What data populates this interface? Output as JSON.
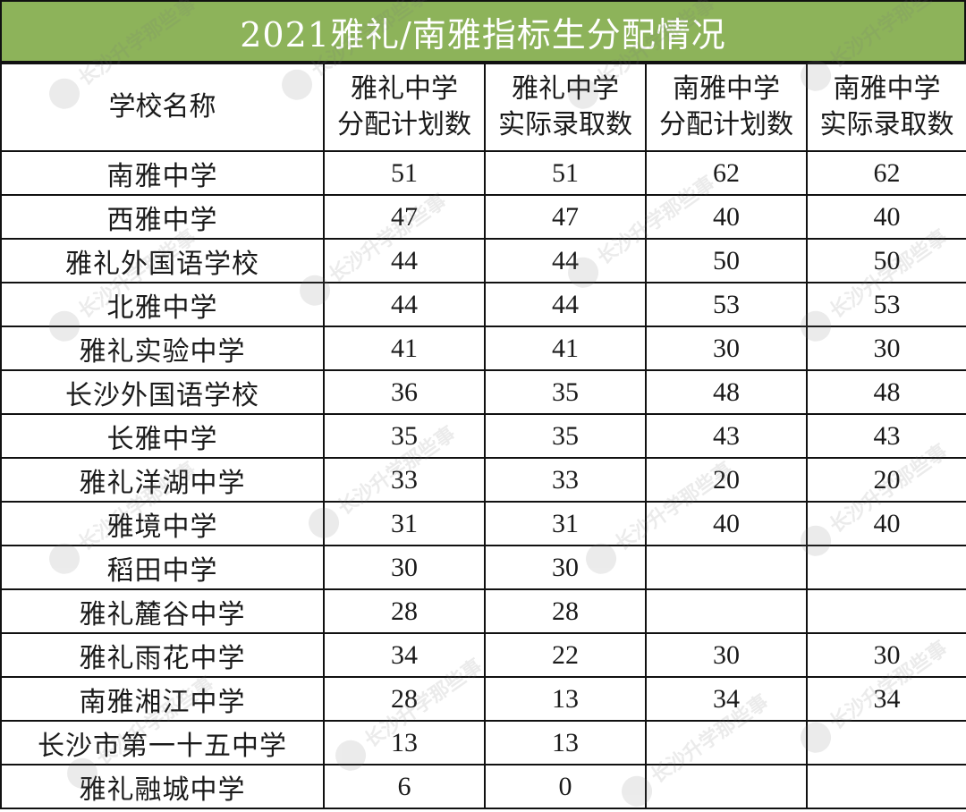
{
  "title": "2021雅礼/南雅指标生分配情况",
  "columns": [
    {
      "lines": [
        "学校名称"
      ]
    },
    {
      "lines": [
        "雅礼中学",
        "分配计划数"
      ]
    },
    {
      "lines": [
        "雅礼中学",
        "实际录取数"
      ]
    },
    {
      "lines": [
        "南雅中学",
        "分配计划数"
      ]
    },
    {
      "lines": [
        "南雅中学",
        "实际录取数"
      ]
    }
  ],
  "rows": [
    {
      "school": "南雅中学",
      "yali_plan": "51",
      "yali_actual": "51",
      "nanya_plan": "62",
      "nanya_actual": "62"
    },
    {
      "school": "西雅中学",
      "yali_plan": "47",
      "yali_actual": "47",
      "nanya_plan": "40",
      "nanya_actual": "40"
    },
    {
      "school": "雅礼外国语学校",
      "yali_plan": "44",
      "yali_actual": "44",
      "nanya_plan": "50",
      "nanya_actual": "50"
    },
    {
      "school": "北雅中学",
      "yali_plan": "44",
      "yali_actual": "44",
      "nanya_plan": "53",
      "nanya_actual": "53"
    },
    {
      "school": "雅礼实验中学",
      "yali_plan": "41",
      "yali_actual": "41",
      "nanya_plan": "30",
      "nanya_actual": "30"
    },
    {
      "school": "长沙外国语学校",
      "yali_plan": "36",
      "yali_actual": "35",
      "nanya_plan": "48",
      "nanya_actual": "48"
    },
    {
      "school": "长雅中学",
      "yali_plan": "35",
      "yali_actual": "35",
      "nanya_plan": "43",
      "nanya_actual": "43"
    },
    {
      "school": "雅礼洋湖中学",
      "yali_plan": "33",
      "yali_actual": "33",
      "nanya_plan": "20",
      "nanya_actual": "20"
    },
    {
      "school": "雅境中学",
      "yali_plan": "31",
      "yali_actual": "31",
      "nanya_plan": "40",
      "nanya_actual": "40"
    },
    {
      "school": "稻田中学",
      "yali_plan": "30",
      "yali_actual": "30",
      "nanya_plan": "",
      "nanya_actual": ""
    },
    {
      "school": "雅礼麓谷中学",
      "yali_plan": "28",
      "yali_actual": "28",
      "nanya_plan": "",
      "nanya_actual": ""
    },
    {
      "school": "雅礼雨花中学",
      "yali_plan": "34",
      "yali_actual": "22",
      "nanya_plan": "30",
      "nanya_actual": "30"
    },
    {
      "school": "南雅湘江中学",
      "yali_plan": "28",
      "yali_actual": "13",
      "nanya_plan": "34",
      "nanya_actual": "34"
    },
    {
      "school": "长沙市第一十五中学",
      "yali_plan": "13",
      "yali_actual": "13",
      "nanya_plan": "",
      "nanya_actual": ""
    },
    {
      "school": "雅礼融城中学",
      "yali_plan": "6",
      "yali_actual": "0",
      "nanya_plan": "",
      "nanya_actual": ""
    }
  ],
  "watermark": {
    "text": "长沙升学那些事",
    "icon": "cartoon-face-icon"
  },
  "colors": {
    "title_bg": "#8db35a",
    "title_fg": "#ffffff",
    "grid_line": "#111111"
  }
}
